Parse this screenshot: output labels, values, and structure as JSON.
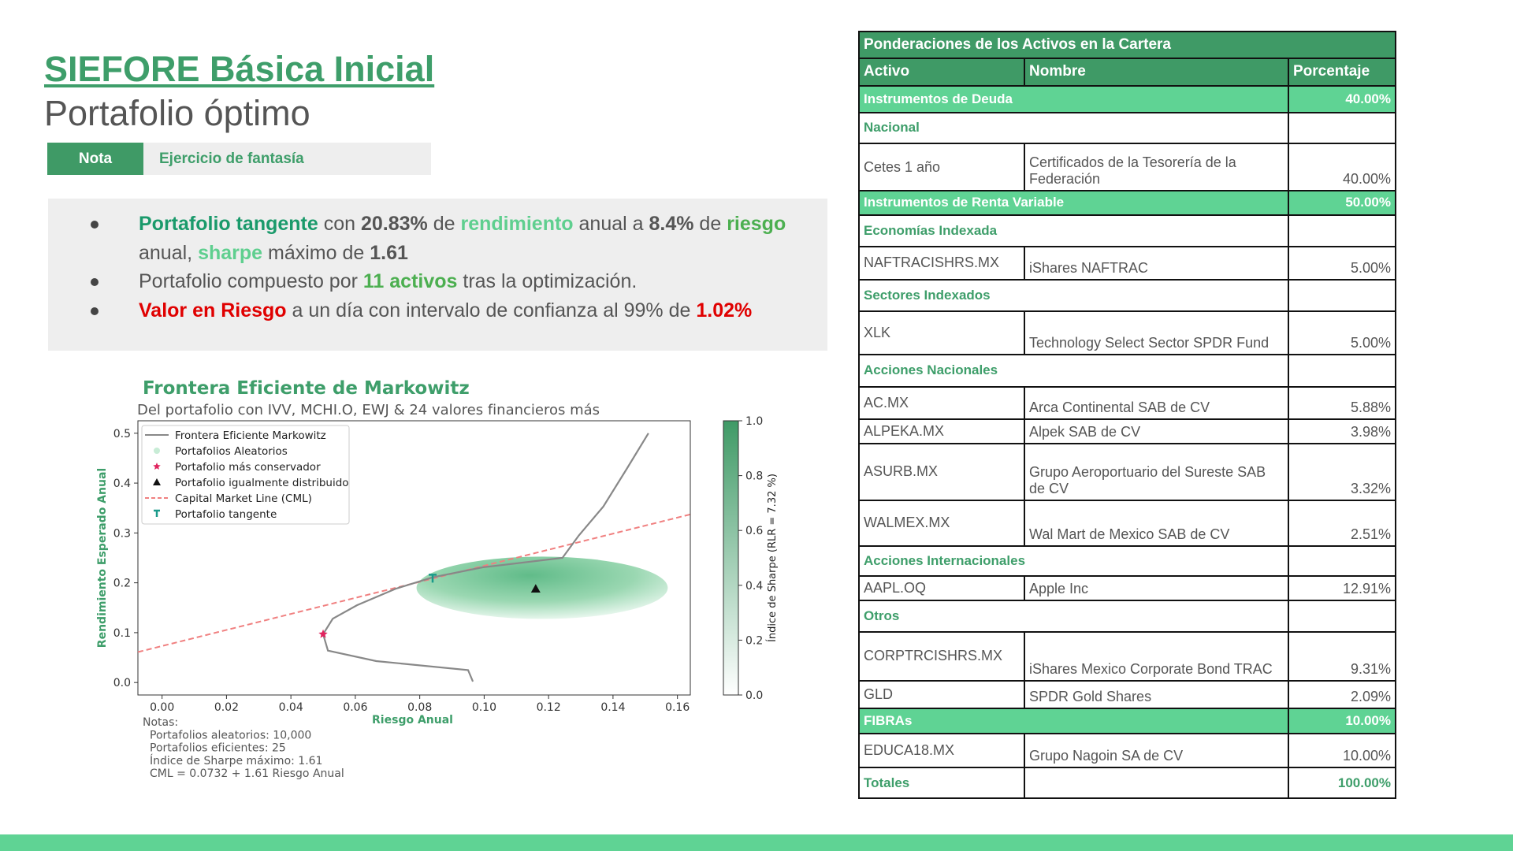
{
  "header": {
    "title": "SIEFORE Básica Inicial",
    "subtitle": "Portafolio óptimo",
    "note_label": "Nota",
    "note_text": "Ejercicio de fantasía"
  },
  "bullets": [
    [
      {
        "text": "Portafolio tangente",
        "color": "#1a9a6b",
        "bold": true
      },
      {
        "text": " con "
      },
      {
        "text": "20.83%",
        "bold": true
      },
      {
        "text": " de "
      },
      {
        "text": "rendimiento",
        "color": "#5fcf8f",
        "bold": true
      },
      {
        "text": " anual a "
      },
      {
        "text": "8.4%",
        "bold": true
      },
      {
        "text": " de "
      },
      {
        "text": "riesgo",
        "color": "#4caf50",
        "bold": true
      },
      {
        "text": " anual, "
      },
      {
        "text": "sharpe",
        "color": "#5fcf8f",
        "bold": true
      },
      {
        "text": " máximo de "
      },
      {
        "text": "1.61",
        "bold": true
      }
    ],
    [
      {
        "text": "Portafolio compuesto por "
      },
      {
        "text": "11 activos",
        "color": "#4caf50",
        "bold": true
      },
      {
        "text": " tras la optimización."
      }
    ],
    [
      {
        "text": "Valor en Riesgo",
        "color": "#e00000",
        "bold": true
      },
      {
        "text": " a un día con intervalo de confianza al 99% de "
      },
      {
        "text": "1.02%",
        "color": "#e00000",
        "bold": true
      }
    ]
  ],
  "chart": {
    "title": "Frontera Eficiente de Markowitz",
    "subtitle": "Del portafolio con IVV, MCHI.O, EWJ & 24 valores financieros más",
    "xlabel": "Riesgo Anual",
    "ylabel": "Rendimiento Esperado Anual",
    "colorbar_label": "Índice de Sharpe (RLR = 7.32 %)",
    "xlim": [
      -0.0075,
      0.164
    ],
    "ylim": [
      -0.025,
      0.525
    ],
    "xticks": [
      {
        "value": 0,
        "label": "0.00"
      },
      {
        "value": 0.02,
        "label": "0.02"
      },
      {
        "value": 0.04,
        "label": "0.04"
      },
      {
        "value": 0.06,
        "label": "0.06"
      },
      {
        "value": 0.08,
        "label": "0.08"
      },
      {
        "value": 0.1,
        "label": "0.10"
      },
      {
        "value": 0.12,
        "label": "0.12"
      },
      {
        "value": 0.14,
        "label": "0.14"
      },
      {
        "value": 0.16,
        "label": "0.16"
      }
    ],
    "yticks": [
      {
        "value": 0,
        "label": "0.0"
      },
      0.1,
      0.2,
      0.3,
      0.4,
      0.5
    ],
    "colorbar_lim": [
      0,
      1
    ],
    "colorbar_ticks": [
      {
        "value": 0,
        "label": "0.0"
      },
      0.2,
      0.4,
      0.6,
      0.8,
      {
        "value": 1,
        "label": "1.0"
      }
    ],
    "legend": [
      "Frontera Eficiente Markowitz",
      "Portafolios Aleatorios",
      "Portafolio más conservador",
      "Portafolio igualmente distribuido",
      "Capital Market Line (CML)",
      "Portafolio tangente"
    ],
    "frontier": {
      "color": "#888888",
      "x": [
        0.0965,
        0.095,
        0.0665,
        0.0515,
        0.05,
        0.053,
        0.0605,
        0.0725,
        0.084,
        0.0995,
        0.1243,
        0.1294,
        0.137,
        0.1444,
        0.151
      ],
      "y": [
        0.002,
        0.025,
        0.043,
        0.064,
        0.097,
        0.128,
        0.155,
        0.188,
        0.211,
        0.231,
        0.25,
        0.295,
        0.353,
        0.43,
        0.5
      ]
    },
    "cml": {
      "intercept": 0.0732,
      "slope": 1.61,
      "color": "#f08080"
    },
    "conservative": {
      "x": 0.05,
      "y": 0.097,
      "color": "#e0245e"
    },
    "equal": {
      "x": 0.116,
      "y": 0.188,
      "color": "#111111"
    },
    "tangent": {
      "x": 0.084,
      "y": 0.2083,
      "color": "#1a9a8a"
    },
    "notes": [
      "Notas:",
      "Portafolios aleatorios: 10,000",
      "Portafolios eficientes: 25",
      "Índice de Sharpe máximo: 1.61",
      "CML = 0.0732 + 1.61 Riesgo Anual"
    ]
  },
  "table": {
    "title": "Ponderaciones de los Activos en la Cartera",
    "columns": [
      "Activo",
      "Nombre",
      "Porcentaje"
    ],
    "rows": [
      {
        "group": "Instrumentos de Deuda",
        "weight": "40.00%"
      },
      {
        "section": "Nacional"
      },
      {
        "asset": "Cetes 1 año",
        "name": "Certificados de la Tesorería de la Federación",
        "weight": "40.00%"
      },
      {
        "group": "Instrumentos de Renta Variable",
        "weight": "50.00%"
      },
      {
        "section": "Economías Indexada"
      },
      {
        "asset": "NAFTRACISHRS.MX",
        "name": "iShares NAFTRAC",
        "weight": "5.00%"
      },
      {
        "section": "Sectores Indexados"
      },
      {
        "asset": "XLK",
        "name": "Technology Select Sector SPDR Fund",
        "weight": "5.00%"
      },
      {
        "section": "Acciones Nacionales"
      },
      {
        "asset": "AC.MX",
        "name": "Arca Continental SAB de CV",
        "weight": "5.88%"
      },
      {
        "asset": "ALPEKA.MX",
        "name": "Alpek SAB de CV",
        "weight": "3.98%"
      },
      {
        "asset": "ASURB.MX",
        "name": "Grupo Aeroportuario del Sureste SAB de CV",
        "weight": "3.32%"
      },
      {
        "asset": "WALMEX.MX",
        "name": "Wal Mart de Mexico SAB de CV",
        "weight": "2.51%"
      },
      {
        "section": "Acciones Internacionales"
      },
      {
        "asset": "AAPL.OQ",
        "name": "Apple Inc",
        "weight": "12.91%"
      },
      {
        "section": "Otros"
      },
      {
        "asset": "CORPTRCISHRS.MX",
        "name": "iShares Mexico Corporate Bond TRAC",
        "weight": "9.31%"
      },
      {
        "asset": "GLD",
        "name": "SPDR Gold Shares",
        "weight": "2.09%"
      },
      {
        "group": "FIBRAs",
        "weight": "10.00%"
      },
      {
        "asset": "EDUCA18.MX",
        "name": "Grupo Nagoin SA de CV",
        "weight": "10.00%"
      }
    ],
    "totals": {
      "label": "Totales",
      "weight": "100.00%"
    }
  }
}
